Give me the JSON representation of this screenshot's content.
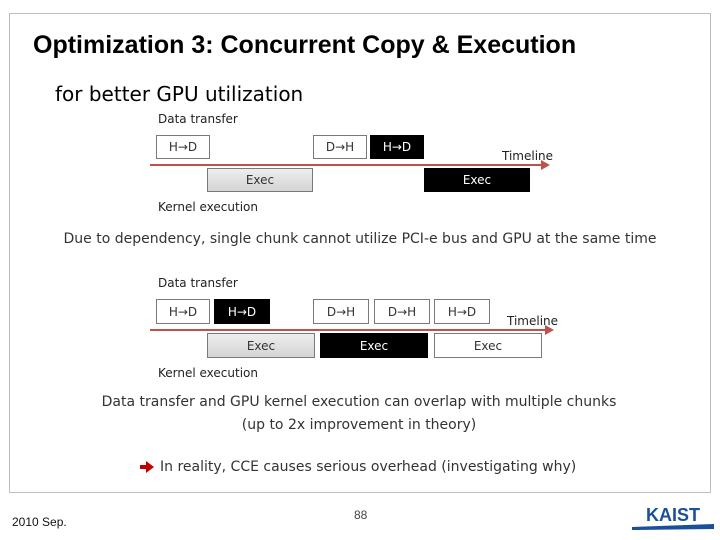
{
  "slide": {
    "title": "Optimization 3: Concurrent Copy & Execution",
    "subtitle": "for better GPU utilization",
    "caption1": "Due to dependency, single chunk cannot utilize PCI-e bus and GPU at the same time",
    "caption2_line1": "Data transfer and GPU kernel execution can overlap with multiple chunks",
    "caption2_line2": "(up to 2x improvement in theory)",
    "note": "In reality, CCE causes serious overhead (investigating why)",
    "date": "2010 Sep.",
    "page_number": "88",
    "logo_text": "KAIST"
  },
  "diagram1": {
    "data_transfer_label": "Data transfer",
    "kernel_label": "Kernel execution",
    "timeline_label": "Timeline",
    "h2d_1": "H→D",
    "d2h_1": "D→H",
    "h2d_2": "H→D",
    "exec_1": "Exec",
    "exec_2": "Exec"
  },
  "diagram2": {
    "data_transfer_label": "Data transfer",
    "kernel_label": "Kernel execution",
    "timeline_label": "Timeline",
    "h2d_1": "H→D",
    "h2d_2": "H→D",
    "d2h_1": "D→H",
    "d2h_2": "D→H",
    "h2d_3": "H→D",
    "exec_1": "Exec",
    "exec_2": "Exec",
    "exec_3": "Exec"
  },
  "colors": {
    "timeline": "#c0504d",
    "logo_blue": "#1a4f9c"
  }
}
